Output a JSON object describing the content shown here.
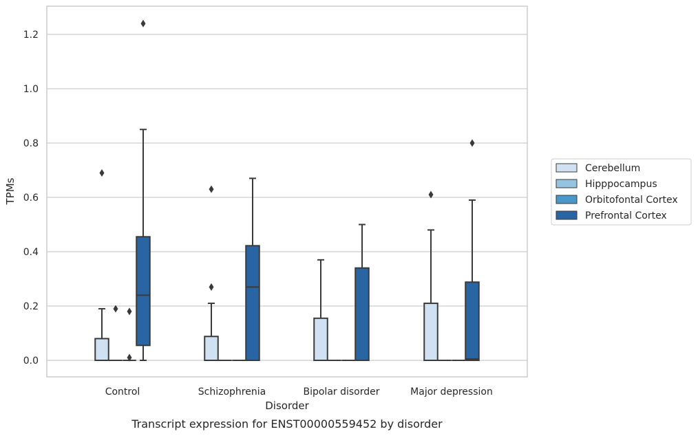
{
  "chart_data": {
    "type": "box",
    "caption": "Transcript expression for ENST00000559452 by disorder",
    "xlabel": "Disorder",
    "ylabel": "TPMs",
    "ylim": [
      -0.06,
      1.3
    ],
    "yticks": [
      "0.0",
      "0.2",
      "0.4",
      "0.6",
      "0.8",
      "1.0",
      "1.2"
    ],
    "grid": true,
    "legend_position": "right",
    "categories": [
      "Control",
      "Schizophrenia",
      "Bipolar disorder",
      "Major depression"
    ],
    "series": [
      {
        "name": "Cerebellum",
        "color": "#d0e1f2",
        "boxes": [
          {
            "whisker_low": 0.0,
            "q1": 0.0,
            "median": 0.0,
            "q3": 0.08,
            "whisker_high": 0.19,
            "outliers": [
              0.69
            ]
          },
          {
            "whisker_low": 0.0,
            "q1": 0.0,
            "median": 0.0,
            "q3": 0.088,
            "whisker_high": 0.21,
            "outliers": [
              0.27,
              0.63
            ]
          },
          {
            "whisker_low": 0.0,
            "q1": 0.0,
            "median": 0.0,
            "q3": 0.155,
            "whisker_high": 0.37,
            "outliers": []
          },
          {
            "whisker_low": 0.0,
            "q1": 0.0,
            "median": 0.0,
            "q3": 0.21,
            "whisker_high": 0.48,
            "outliers": [
              0.61
            ]
          }
        ]
      },
      {
        "name": "Hipppocampus",
        "color": "#94c4df",
        "boxes": [
          {
            "whisker_low": 0.0,
            "q1": 0.0,
            "median": 0.0,
            "q3": 0.0,
            "whisker_high": 0.0,
            "outliers": [
              0.19
            ]
          },
          {
            "whisker_low": 0.0,
            "q1": 0.0,
            "median": 0.0,
            "q3": 0.0,
            "whisker_high": 0.0,
            "outliers": []
          },
          {
            "whisker_low": 0.0,
            "q1": 0.0,
            "median": 0.0,
            "q3": 0.0,
            "whisker_high": 0.0,
            "outliers": []
          },
          {
            "whisker_low": 0.0,
            "q1": 0.0,
            "median": 0.0,
            "q3": 0.0,
            "whisker_high": 0.0,
            "outliers": []
          }
        ]
      },
      {
        "name": "Orbitofontal Cortex",
        "color": "#4a98c9",
        "boxes": [
          {
            "whisker_low": 0.0,
            "q1": 0.0,
            "median": 0.0,
            "q3": 0.0,
            "whisker_high": 0.0,
            "outliers": [
              0.01,
              0.18
            ]
          },
          {
            "whisker_low": 0.0,
            "q1": 0.0,
            "median": 0.0,
            "q3": 0.0,
            "whisker_high": 0.0,
            "outliers": []
          },
          {
            "whisker_low": 0.0,
            "q1": 0.0,
            "median": 0.0,
            "q3": 0.0,
            "whisker_high": 0.0,
            "outliers": []
          },
          {
            "whisker_low": 0.0,
            "q1": 0.0,
            "median": 0.0,
            "q3": 0.0,
            "whisker_high": 0.0,
            "outliers": []
          }
        ]
      },
      {
        "name": "Prefrontal Cortex",
        "color": "#2a65a3",
        "boxes": [
          {
            "whisker_low": 0.0,
            "q1": 0.055,
            "median": 0.24,
            "q3": 0.455,
            "whisker_high": 0.85,
            "outliers": [
              1.24
            ]
          },
          {
            "whisker_low": 0.0,
            "q1": 0.0,
            "median": 0.27,
            "q3": 0.422,
            "whisker_high": 0.67,
            "outliers": []
          },
          {
            "whisker_low": 0.0,
            "q1": 0.0,
            "median": 0.0,
            "q3": 0.34,
            "whisker_high": 0.5,
            "outliers": []
          },
          {
            "whisker_low": 0.0,
            "q1": 0.0,
            "median": 0.005,
            "q3": 0.288,
            "whisker_high": 0.59,
            "outliers": [
              0.8
            ]
          }
        ]
      }
    ]
  }
}
